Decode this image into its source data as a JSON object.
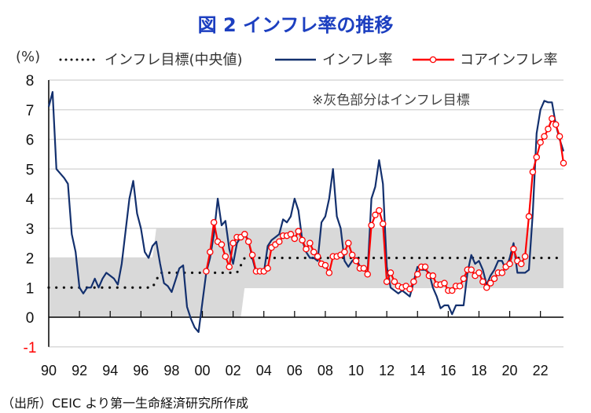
{
  "title": "図 2  インフレ率の推移",
  "source": "（出所）CEIC より第一生命経済研究所作成",
  "chart_data": {
    "type": "line",
    "title": "図 2  インフレ率の推移",
    "ylabel": "(%)",
    "ylim": [
      -1,
      8
    ],
    "xlim": [
      1990,
      2023.5
    ],
    "yticks": [
      "8",
      "7",
      "6",
      "5",
      "4",
      "3",
      "2",
      "1",
      "0",
      "-1"
    ],
    "xticks": [
      {
        "year": 1990,
        "label": "90"
      },
      {
        "year": 1992,
        "label": "92"
      },
      {
        "year": 1994,
        "label": "94"
      },
      {
        "year": 1996,
        "label": "96"
      },
      {
        "year": 1998,
        "label": "98"
      },
      {
        "year": 2000,
        "label": "00"
      },
      {
        "year": 2002,
        "label": "02"
      },
      {
        "year": 2004,
        "label": "04"
      },
      {
        "year": 2006,
        "label": "06"
      },
      {
        "year": 2008,
        "label": "08"
      },
      {
        "year": 2010,
        "label": "10"
      },
      {
        "year": 2012,
        "label": "12"
      },
      {
        "year": 2014,
        "label": "14"
      },
      {
        "year": 2016,
        "label": "16"
      },
      {
        "year": 2018,
        "label": "18"
      },
      {
        "year": 2020,
        "label": "20"
      },
      {
        "year": 2022,
        "label": "22"
      }
    ],
    "grid": true,
    "legend_position": "top",
    "annotation": "※灰色部分はインフレ目標",
    "colors": {
      "inflation": "#13306e",
      "core": "#ff0000",
      "target": "#111111",
      "band": "#d9d9d9",
      "negative_label": "#ff0000"
    },
    "target_band": [
      {
        "from": 1990,
        "to": 1996.75,
        "low": 0,
        "high": 2
      },
      {
        "from": 1997.0,
        "to": 2002.5,
        "low": 0,
        "high": 3
      },
      {
        "from": 2002.75,
        "to": 2023.5,
        "low": 1,
        "high": 3
      }
    ],
    "series": [
      {
        "name": "インフレ目標(中央値)",
        "style": "dotted",
        "points": [
          [
            1990,
            1
          ],
          [
            1996.75,
            1
          ],
          [
            1997.25,
            1.5
          ],
          [
            2002.25,
            1.5
          ],
          [
            2002.75,
            2
          ],
          [
            2023.5,
            2
          ]
        ]
      },
      {
        "name": "インフレ率",
        "style": "line",
        "start": 1990,
        "step": 0.25,
        "values": [
          7.1,
          7.6,
          5.0,
          4.85,
          4.7,
          4.5,
          2.8,
          2.2,
          1.0,
          0.8,
          1.0,
          1.0,
          1.3,
          1.0,
          1.3,
          1.5,
          1.4,
          1.3,
          1.1,
          1.8,
          2.9,
          4.0,
          4.6,
          3.5,
          3.0,
          2.2,
          2.0,
          2.4,
          2.55,
          1.8,
          1.15,
          1.05,
          0.85,
          1.25,
          1.65,
          1.75,
          0.35,
          -0.05,
          -0.35,
          -0.5,
          0.5,
          1.5,
          2.0,
          2.8,
          4.0,
          3.1,
          3.25,
          2.3,
          1.8,
          2.5,
          2.7,
          2.8,
          2.6,
          2.0,
          1.5,
          1.5,
          1.5,
          2.4,
          2.6,
          2.7,
          2.8,
          3.3,
          3.2,
          3.4,
          4.0,
          3.6,
          2.6,
          2.2,
          2.0,
          2.0,
          1.9,
          3.2,
          3.4,
          4.0,
          5.0,
          3.4,
          3.0,
          1.9,
          1.7,
          1.9,
          2.0,
          1.7,
          1.6,
          1.5,
          4.0,
          4.4,
          5.3,
          4.5,
          1.7,
          1.0,
          0.9,
          0.8,
          0.9,
          0.8,
          0.7,
          1.2,
          1.7,
          1.6,
          1.6,
          1.5,
          1.0,
          0.7,
          0.3,
          0.4,
          0.4,
          0.1,
          0.4,
          0.4,
          0.4,
          1.5,
          2.1,
          1.8,
          1.9,
          1.6,
          1.1,
          1.4,
          1.6,
          1.9,
          1.9,
          1.6,
          2.0,
          2.5,
          1.5,
          1.5,
          1.5,
          1.6,
          3.5,
          6.2,
          7.0,
          7.3,
          7.25,
          7.25,
          6.5,
          6.0,
          5.6
        ]
      },
      {
        "name": "コアインフレ率",
        "style": "line-marker",
        "start": 2000.25,
        "step": 0.25,
        "values": [
          1.55,
          2.2,
          3.2,
          2.55,
          2.45,
          2.05,
          1.7,
          2.5,
          2.7,
          2.7,
          2.8,
          2.55,
          2.1,
          1.55,
          1.55,
          1.55,
          1.65,
          2.35,
          2.45,
          2.55,
          2.75,
          2.75,
          2.8,
          2.65,
          2.9,
          2.6,
          2.3,
          2.5,
          2.2,
          2.05,
          1.8,
          1.75,
          1.5,
          2.05,
          2.05,
          2.1,
          2.2,
          2.5,
          2.1,
          1.9,
          1.65,
          1.65,
          1.45,
          3.1,
          3.45,
          3.6,
          3.15,
          1.2,
          1.5,
          1.2,
          1.05,
          1.0,
          1.05,
          0.95,
          1.2,
          1.45,
          1.7,
          1.7,
          1.4,
          1.4,
          1.1,
          1.1,
          1.15,
          0.9,
          0.9,
          1.05,
          1.05,
          1.3,
          1.6,
          1.6,
          1.4,
          1.5,
          1.2,
          1.0,
          1.15,
          1.3,
          1.5,
          1.5,
          1.7,
          1.8,
          2.3,
          1.9,
          1.8,
          2.05,
          3.4,
          4.9,
          5.4,
          5.9,
          6.1,
          6.35,
          6.7,
          6.5,
          6.1,
          5.2
        ]
      }
    ]
  }
}
